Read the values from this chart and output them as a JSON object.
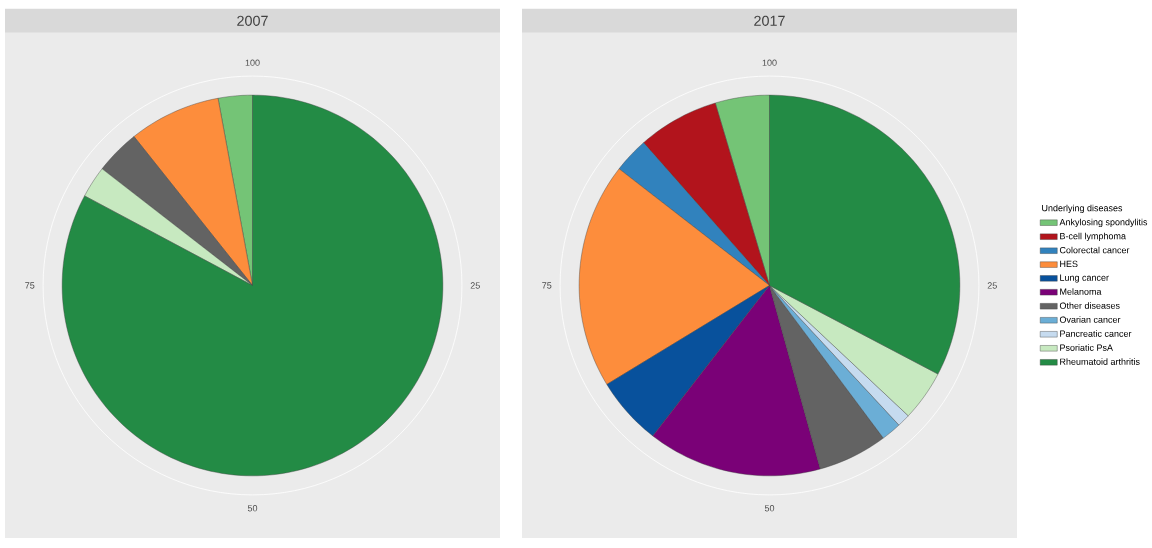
{
  "chart_data": [
    {
      "type": "pie",
      "title": "2007",
      "categories": [
        null,
        null,
        null,
        null,
        null
      ],
      "values": [
        2.9,
        7.8,
        3.8,
        2.7,
        82.8
      ],
      "colors": [
        "#74c476",
        "#fd8d3c",
        "#636363",
        "#c7e9c0",
        "#238b45"
      ],
      "annotations": [
        "100",
        "25",
        "50",
        "75"
      ],
      "grid": true,
      "legend": false
    },
    {
      "type": "pie",
      "title": "2017",
      "legend_title": "Underlying diseases",
      "categories": [
        "Ankylosing spondylitis",
        "B-cell lymphoma",
        "Colorectal cancer",
        "HES",
        "Lung cancer",
        "Melanoma",
        "Other diseases",
        "Ovarian cancer",
        "Pancreatic cancer",
        "Psoriatic PsA",
        "Rheumatoid arthritis"
      ],
      "values": [
        4.6,
        6.9,
        3.0,
        19.2,
        5.8,
        14.8,
        5.9,
        1.7,
        1.1,
        4.3,
        32.7
      ],
      "colors": [
        "#74c476",
        "#b2141c",
        "#3182bd",
        "#fd8d3c",
        "#08519c",
        "#7a0177",
        "#636363",
        "#6baed6",
        "#c6dbef",
        "#c7e9c0",
        "#238b45"
      ],
      "annotations": [
        "100",
        "25",
        "50",
        "75"
      ],
      "grid": true,
      "legend": "right"
    }
  ]
}
